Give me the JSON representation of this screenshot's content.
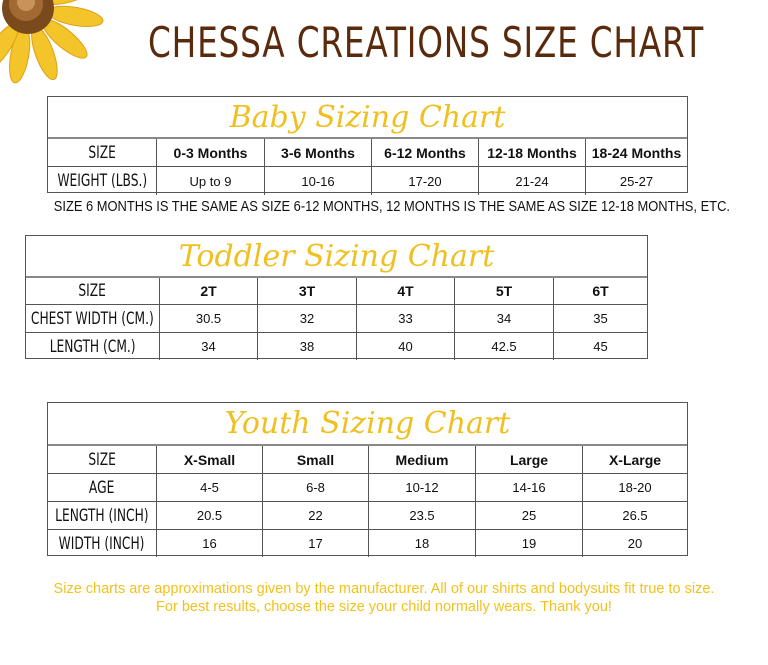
{
  "header": {
    "title": "CHESSA CREATIONS SIZE CHART"
  },
  "colors": {
    "title": "#5a2a0c",
    "accent": "#f2c21b"
  },
  "baby": {
    "caption": "Baby Sizing Chart",
    "rows": [
      [
        "SIZE",
        "0-3 Months",
        "3-6 Months",
        "6-12 Months",
        "12-18 Months",
        "18-24 Months"
      ],
      [
        "WEIGHT (LBS.)",
        "Up to 9",
        "10-16",
        "17-20",
        "21-24",
        "25-27"
      ]
    ]
  },
  "note": "SIZE 6 MONTHS IS THE SAME AS SIZE 6-12 MONTHS, 12 MONTHS IS THE SAME AS SIZE 12-18 MONTHS, ETC.",
  "toddler": {
    "caption": "Toddler Sizing Chart",
    "rows": [
      [
        "SIZE",
        "2T",
        "3T",
        "4T",
        "5T",
        "6T"
      ],
      [
        "CHEST WIDTH (CM.)",
        "30.5",
        "32",
        "33",
        "34",
        "35"
      ],
      [
        "LENGTH (CM.)",
        "34",
        "38",
        "40",
        "42.5",
        "45"
      ]
    ]
  },
  "youth": {
    "caption": "Youth Sizing Chart",
    "rows": [
      [
        "SIZE",
        "X-Small",
        "Small",
        "Medium",
        "Large",
        "X-Large"
      ],
      [
        "AGE",
        "4-5",
        "6-8",
        "10-12",
        "14-16",
        "18-20"
      ],
      [
        "LENGTH (INCH)",
        "20.5",
        "22",
        "23.5",
        "25",
        "26.5"
      ],
      [
        "WIDTH (INCH)",
        "16",
        "17",
        "18",
        "19",
        "20"
      ]
    ]
  },
  "footer": {
    "line1": "Size charts are approximations given by the manufacturer. All of our shirts and bodysuits fit true to size.",
    "line2": "For best results, choose the size your child normally wears. Thank you!"
  }
}
